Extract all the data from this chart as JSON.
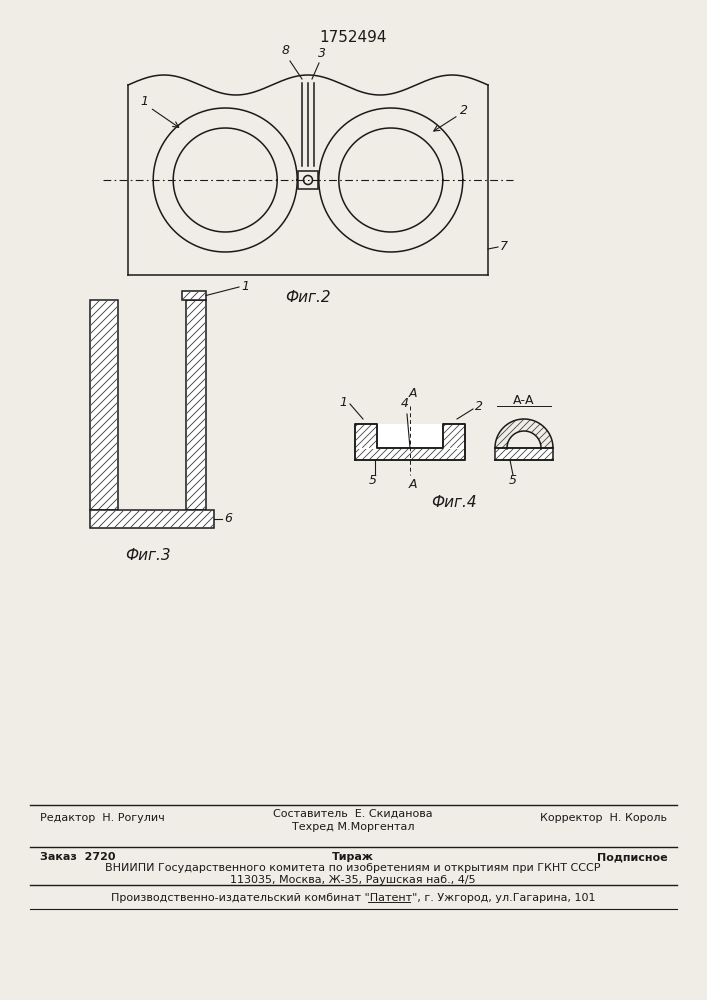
{
  "title": "1752494",
  "bg_color": "#f0ede6",
  "fig_width": 7.07,
  "fig_height": 10.0,
  "fig2_label": "Фиг.2",
  "fig3_label": "Фиг.3",
  "fig4_label": "Фиг.4",
  "footer_r1_left": "Редактор  Н. Рогулич",
  "footer_r1_mid_top": "Составитель  Е. Скиданова",
  "footer_r1_mid_bot": "Техред М.Моргентал",
  "footer_r1_right": "Корректор  Н. Король",
  "footer_r2_left": "Заказ  2720",
  "footer_r2_mid": "Тираж",
  "footer_r2_right": "Подписное",
  "footer_r3": "ВНИИПИ Государственного комитета по изобретениям и открытиям при ГКНТ СССР",
  "footer_r4": "113035, Москва, Ж-35, Раушская наб., 4/5",
  "footer_r5": "Производственно-издательский комбинат \"Патент\", г. Ужгород, ул.Гагарина, 101"
}
